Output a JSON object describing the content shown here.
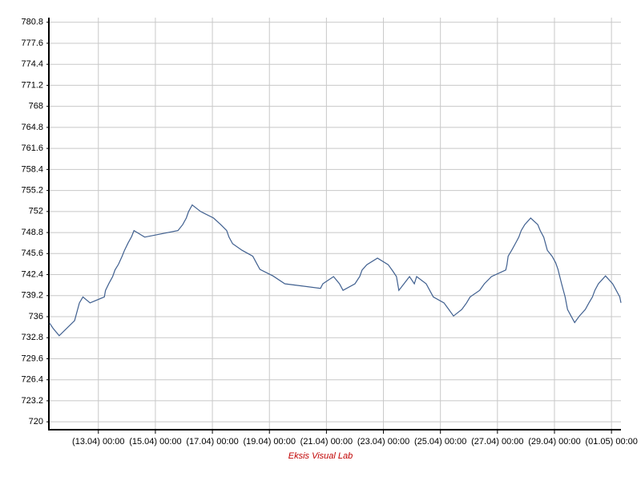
{
  "chart_data": {
    "type": "line",
    "footer": "Eksis Visual Lab",
    "grid": true,
    "xlim": [
      "11.04 07:00",
      "01.05 08:00"
    ],
    "xticks": [
      {
        "value": "13.04 00:00",
        "label": "(13.04) 00:00"
      },
      {
        "value": "15.04 00:00",
        "label": "(15.04) 00:00"
      },
      {
        "value": "17.04 00:00",
        "label": "(17.04) 00:00"
      },
      {
        "value": "19.04 00:00",
        "label": "(19.04) 00:00"
      },
      {
        "value": "21.04 00:00",
        "label": "(21.04) 00:00"
      },
      {
        "value": "23.04 00:00",
        "label": "(23.04) 00:00"
      },
      {
        "value": "25.04 00:00",
        "label": "(25.04) 00:00"
      },
      {
        "value": "27.04 00:00",
        "label": "(27.04) 00:00"
      },
      {
        "value": "29.04 00:00",
        "label": "(29.04) 00:00"
      },
      {
        "value": "01.05 00:00",
        "label": "(01.05) 00:00"
      }
    ],
    "ylim": [
      718.8,
      781.5
    ],
    "yticks": [
      720,
      723.2,
      726.4,
      729.6,
      732.8,
      736,
      739.2,
      742.4,
      745.6,
      748.8,
      752,
      755.2,
      758.4,
      761.6,
      764.8,
      768,
      771.2,
      774.4,
      777.6,
      780.8
    ],
    "series": [
      {
        "color": "#3f5f8f",
        "x": [
          "11.04 07:00",
          "11.04 10:00",
          "11.04 15:00",
          "12.04 04:00",
          "12.04 08:00",
          "12.04 11:00",
          "12.04 17:00",
          "13.04 05:00",
          "13.04 06:00",
          "13.04 09:00",
          "13.04 12:00",
          "13.04 14:00",
          "13.04 17:00",
          "13.04 20:00",
          "13.04 22:00",
          "14.04 01:00",
          "14.04 04:00",
          "14.04 06:00",
          "14.04 15:00",
          "15.04 19:00",
          "15.04 23:00",
          "16.04 02:00",
          "16.04 04:00",
          "16.04 07:00",
          "16.04 14:00",
          "17.04 01:00",
          "17.04 07:00",
          "17.04 12:00",
          "17.04 14:00",
          "17.04 17:00",
          "18.04 01:00",
          "18.04 10:00",
          "18.04 13:00",
          "18.04 16:00",
          "19.04 03:00",
          "19.04 13:00",
          "20.04 19:00",
          "20.04 21:00",
          "21.04 06:00",
          "21.04 11:00",
          "21.04 14:00",
          "22.04 00:00",
          "22.04 04:00",
          "22.04 06:00",
          "22.04 10:00",
          "22.04 19:00",
          "23.04 04:00",
          "23.04 08:00",
          "23.04 11:00",
          "23.04 13:00",
          "23.04 22:00",
          "24.04 02:00",
          "24.04 04:00",
          "24.04 12:00",
          "24.04 15:00",
          "24.04 18:00",
          "25.04 03:00",
          "25.04 07:00",
          "25.04 11:00",
          "25.04 18:00",
          "25.04 22:00",
          "26.04 01:00",
          "26.04 09:00",
          "26.04 13:00",
          "26.04 19:00",
          "27.04 07:00",
          "27.04 08:00",
          "27.04 09:00",
          "27.04 12:00",
          "27.04 15:00",
          "27.04 18:00",
          "27.04 20:00",
          "27.04 23:00",
          "28.04 04:00",
          "28.04 10:00",
          "28.04 12:00",
          "28.04 15:00",
          "28.04 18:00",
          "28.04 22:00",
          "29.04 01:00",
          "29.04 03:00",
          "29.04 06:00",
          "29.04 09:00",
          "29.04 11:00",
          "29.04 14:00",
          "29.04 17:00",
          "29.04 21:00",
          "30.04 02:00",
          "30.04 05:00",
          "30.04 08:00",
          "30.04 10:00",
          "30.04 13:00",
          "30.04 19:00",
          "01.05 01:00",
          "01.05 04:00",
          "01.05 07:00",
          "01.05 08:00"
        ],
        "values": [
          735.0,
          734.2,
          733.1,
          735.4,
          738.1,
          739.0,
          738.1,
          739.0,
          740.0,
          741.1,
          742.1,
          743.1,
          744.0,
          745.2,
          746.1,
          747.2,
          748.2,
          749.1,
          748.1,
          749.1,
          750.0,
          751.0,
          752.0,
          753.0,
          752.0,
          751.0,
          750.0,
          749.1,
          748.1,
          747.1,
          746.1,
          745.2,
          744.2,
          743.2,
          742.2,
          741.0,
          740.3,
          741.0,
          742.1,
          741.0,
          740.0,
          741.0,
          742.1,
          743.1,
          743.9,
          744.9,
          743.9,
          742.9,
          742.1,
          740.0,
          742.1,
          741.0,
          742.1,
          741.0,
          740.0,
          739.0,
          738.1,
          737.1,
          736.1,
          737.1,
          738.1,
          739.0,
          740.0,
          741.0,
          742.1,
          743.1,
          743.9,
          745.2,
          746.1,
          747.1,
          748.1,
          749.1,
          750.0,
          751.0,
          750.0,
          749.1,
          748.1,
          746.1,
          745.2,
          744.2,
          743.2,
          741.0,
          739.0,
          737.1,
          736.1,
          735.1,
          736.1,
          737.1,
          738.1,
          739.0,
          740.0,
          741.0,
          742.2,
          741.0,
          740.0,
          739.0,
          738.1
        ]
      }
    ]
  }
}
